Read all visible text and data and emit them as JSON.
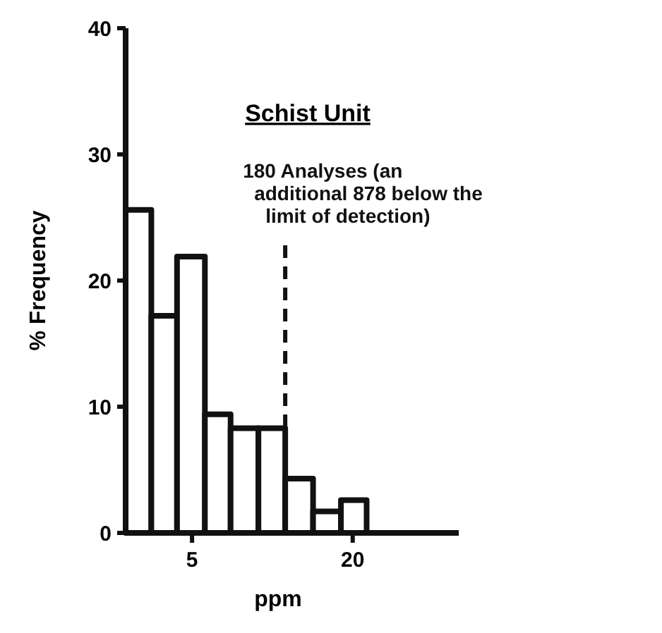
{
  "chart_data": {
    "type": "histogram",
    "title": "Schist Unit",
    "xlabel": "ppm",
    "ylabel": "% Frequency",
    "bins": [
      -1.2,
      1.2,
      3.6,
      6.2,
      8.6,
      11.2,
      13.7,
      16.3,
      18.9,
      21.3
    ],
    "values": [
      25.6,
      17.2,
      21.9,
      9.4,
      8.3,
      8.3,
      4.3,
      1.7,
      2.6
    ],
    "color": "#111111",
    "xlim": [
      -1.2,
      29.9
    ],
    "xticks": [
      5,
      20
    ],
    "ylim": [
      0,
      40
    ],
    "yticks": [
      0,
      10,
      20,
      30,
      40
    ],
    "ref_lines": [
      {
        "axis": "x",
        "value": 13.7,
        "label": "180 Analyses (an additional 878 below the limit of detection)",
        "line_style": "dashed"
      }
    ],
    "grid": false
  }
}
